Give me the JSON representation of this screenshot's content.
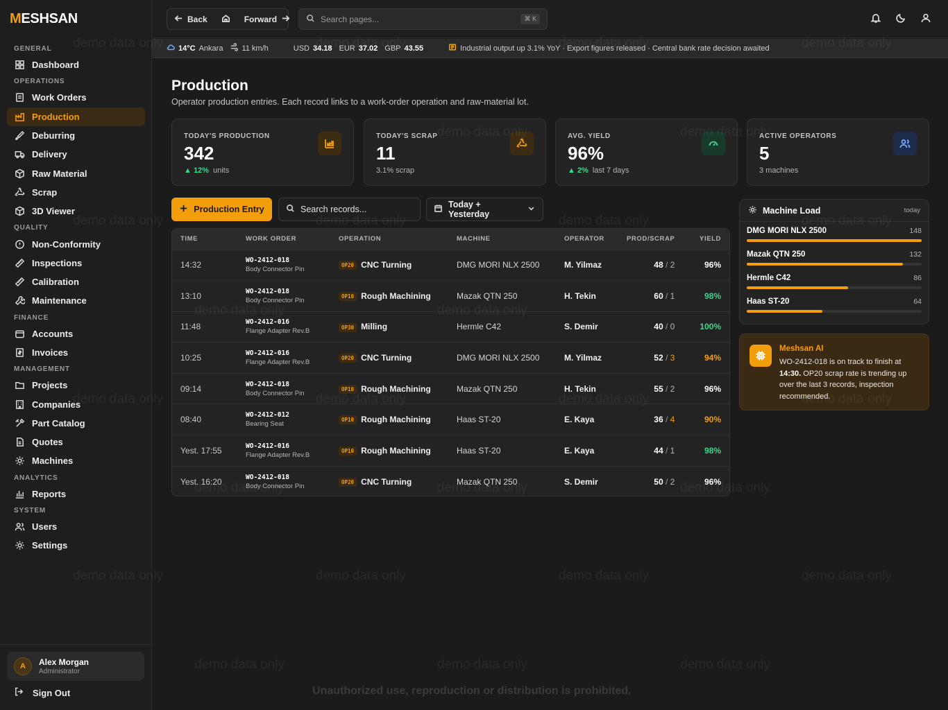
{
  "brand": {
    "logo_m": "M",
    "logo_rest": "ESHSAN"
  },
  "sidebar": {
    "sections": {
      "general": "GENERAL",
      "operations": "OPERATIONS",
      "quality": "QUALITY",
      "finance": "FINANCE",
      "management": "MANAGEMENT",
      "analytics": "ANALYTICS",
      "system": "SYSTEM"
    },
    "items": {
      "dashboard": "Dashboard",
      "work_orders": "Work Orders",
      "production": "Production",
      "deburring": "Deburring",
      "delivery": "Delivery",
      "raw_material": "Raw Material",
      "scrap": "Scrap",
      "viewer_3d": "3D Viewer",
      "non_conformity": "Non-Conformity",
      "inspections": "Inspections",
      "calibration": "Calibration",
      "maintenance": "Maintenance",
      "accounts": "Accounts",
      "invoices": "Invoices",
      "projects": "Projects",
      "companies": "Companies",
      "part_catalog": "Part Catalog",
      "quotes": "Quotes",
      "machines": "Machines",
      "reports": "Reports",
      "users": "Users",
      "settings": "Settings"
    },
    "user": {
      "initial": "A",
      "name": "Alex Morgan",
      "role": "Administrator"
    },
    "sign_out": "Sign Out"
  },
  "topbar": {
    "back": "Back",
    "forward": "Forward",
    "search_placeholder": "Search pages...",
    "shortcut": "⌘ K"
  },
  "ticker": {
    "temp": "14°C",
    "city": "Ankara",
    "wind": "11 km/h",
    "usd_label": "USD",
    "usd": "34.18",
    "eur_label": "EUR",
    "eur": "37.02",
    "gbp_label": "GBP",
    "gbp": "43.55",
    "news": "Industrial output up 3.1% YoY · Export figures released · Central bank rate decision awaited"
  },
  "page": {
    "title": "Production",
    "subtitle": "Operator production entries. Each record links to a work-order operation and raw-material lot."
  },
  "stats": [
    {
      "label": "TODAY'S PRODUCTION",
      "value": "342",
      "delta": "▲ 12%",
      "note": "units"
    },
    {
      "label": "TODAY'S SCRAP",
      "value": "11",
      "note": "3.1% scrap"
    },
    {
      "label": "AVG. YIELD",
      "value": "96%",
      "delta": "▲ 2%",
      "note": "last 7 days"
    },
    {
      "label": "ACTIVE OPERATORS",
      "value": "5",
      "note": "3 machines"
    }
  ],
  "toolbar": {
    "add_label": "Production Entry",
    "search_placeholder": "Search records...",
    "date_range": "Today + Yesterday"
  },
  "table": {
    "headers": [
      "TIME",
      "WORK ORDER",
      "OPERATION",
      "MACHINE",
      "OPERATOR",
      "PROD/SCRAP",
      "YIELD"
    ],
    "rows": [
      {
        "time": "14:32",
        "wo": "WO-2412-018",
        "part": "Body Connector Pin",
        "op_code": "OP20",
        "op": "CNC Turning",
        "machine": "DMG MORI NLX 2500",
        "operator": "M. Yilmaz",
        "prod": "48",
        "scrap": "2",
        "yield": "96%"
      },
      {
        "time": "13:10",
        "wo": "WO-2412-018",
        "part": "Body Connector Pin",
        "op_code": "OP10",
        "op": "Rough Machining",
        "machine": "Mazak QTN 250",
        "operator": "H. Tekin",
        "prod": "60",
        "scrap": "1",
        "yield": "98%"
      },
      {
        "time": "11:48",
        "wo": "WO-2412-016",
        "part": "Flange Adapter Rev.B",
        "op_code": "OP30",
        "op": "Milling",
        "machine": "Hermle C42",
        "operator": "S. Demir",
        "prod": "40",
        "scrap": "0",
        "yield": "100%"
      },
      {
        "time": "10:25",
        "wo": "WO-2412-016",
        "part": "Flange Adapter Rev.B",
        "op_code": "OP20",
        "op": "CNC Turning",
        "machine": "DMG MORI NLX 2500",
        "operator": "M. Yilmaz",
        "prod": "52",
        "scrap": "3",
        "yield": "94%"
      },
      {
        "time": "09:14",
        "wo": "WO-2412-018",
        "part": "Body Connector Pin",
        "op_code": "OP10",
        "op": "Rough Machining",
        "machine": "Mazak QTN 250",
        "operator": "H. Tekin",
        "prod": "55",
        "scrap": "2",
        "yield": "96%"
      },
      {
        "time": "08:40",
        "wo": "WO-2412-012",
        "part": "Bearing Seat",
        "op_code": "OP10",
        "op": "Rough Machining",
        "machine": "Haas ST-20",
        "operator": "E. Kaya",
        "prod": "36",
        "scrap": "4",
        "yield": "90%"
      },
      {
        "time": "Yest. 17:55",
        "wo": "WO-2412-016",
        "part": "Flange Adapter Rev.B",
        "op_code": "OP10",
        "op": "Rough Machining",
        "machine": "Haas ST-20",
        "operator": "E. Kaya",
        "prod": "44",
        "scrap": "1",
        "yield": "98%"
      },
      {
        "time": "Yest. 16:20",
        "wo": "WO-2412-018",
        "part": "Body Connector Pin",
        "op_code": "OP20",
        "op": "CNC Turning",
        "machine": "Mazak QTN 250",
        "operator": "S. Demir",
        "prod": "50",
        "scrap": "2",
        "yield": "96%"
      }
    ]
  },
  "machine_load": {
    "title": "Machine Load",
    "tag": "today",
    "max": 148,
    "items": [
      {
        "name": "DMG MORI NLX 2500",
        "value": 148
      },
      {
        "name": "Mazak QTN 250",
        "value": 132
      },
      {
        "name": "Hermle C42",
        "value": 86
      },
      {
        "name": "Haas ST-20",
        "value": 64
      }
    ]
  },
  "ai": {
    "title": "Meshsan AI",
    "text_1": "WO-2412-018 is on track to finish at ",
    "time": "14:30.",
    "text_2": " OP20 scrap rate is trending up over the last 3 records, inspection recommended."
  },
  "footer": "Unauthorized use, reproduction or distribution is prohibited.",
  "watermark": "demo data only",
  "colors": {
    "accent": "#f59e0b",
    "good": "#3dd68c",
    "bg": "#1b1b1b"
  }
}
